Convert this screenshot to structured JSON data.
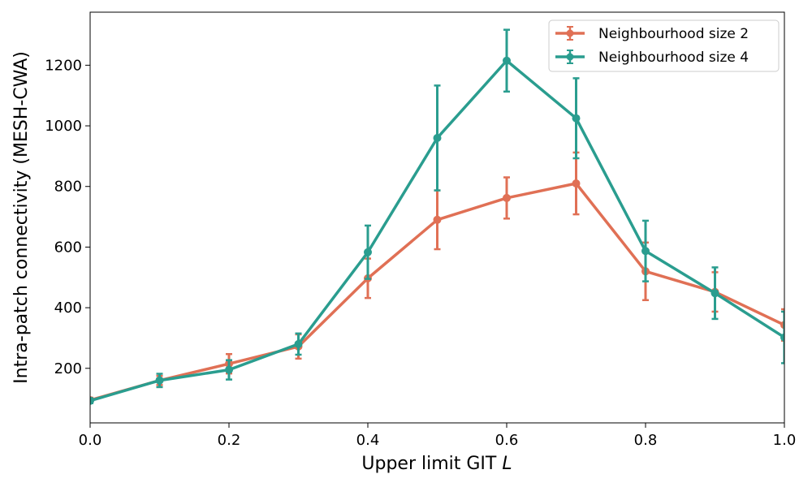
{
  "chart_data": {
    "type": "line",
    "title": "",
    "xlabel": "Upper limit GIT",
    "xlabel_var": "L",
    "ylabel": "Intra-patch connectivity (MESH-CWA)",
    "xlim": [
      0.0,
      1.0
    ],
    "ylim": [
      20,
      1375
    ],
    "x": [
      0.0,
      0.1,
      0.2,
      0.3,
      0.4,
      0.5,
      0.6,
      0.7,
      0.8,
      0.9,
      1.0
    ],
    "xticks": [
      0.0,
      0.2,
      0.4,
      0.6,
      0.8,
      1.0
    ],
    "xtick_labels": [
      "0.0",
      "0.2",
      "0.4",
      "0.6",
      "0.8",
      "1.0"
    ],
    "yticks": [
      200,
      400,
      600,
      800,
      1000,
      1200
    ],
    "ytick_labels": [
      "200",
      "400",
      "600",
      "800",
      "1000",
      "1200"
    ],
    "legend_position": "top-right",
    "series": [
      {
        "name": "Neighbourhood size 2",
        "color": "#E07055",
        "values": [
          95,
          160,
          215,
          272,
          497,
          690,
          762,
          810,
          520,
          452,
          343
        ],
        "errors": [
          8,
          15,
          32,
          40,
          65,
          97,
          68,
          102,
          95,
          65,
          52
        ]
      },
      {
        "name": "Neighbourhood size 4",
        "color": "#2A9D8F",
        "values": [
          93,
          160,
          195,
          280,
          583,
          960,
          1215,
          1025,
          587,
          448,
          302
        ],
        "errors": [
          8,
          22,
          32,
          35,
          88,
          173,
          102,
          132,
          100,
          85,
          85
        ]
      }
    ]
  }
}
